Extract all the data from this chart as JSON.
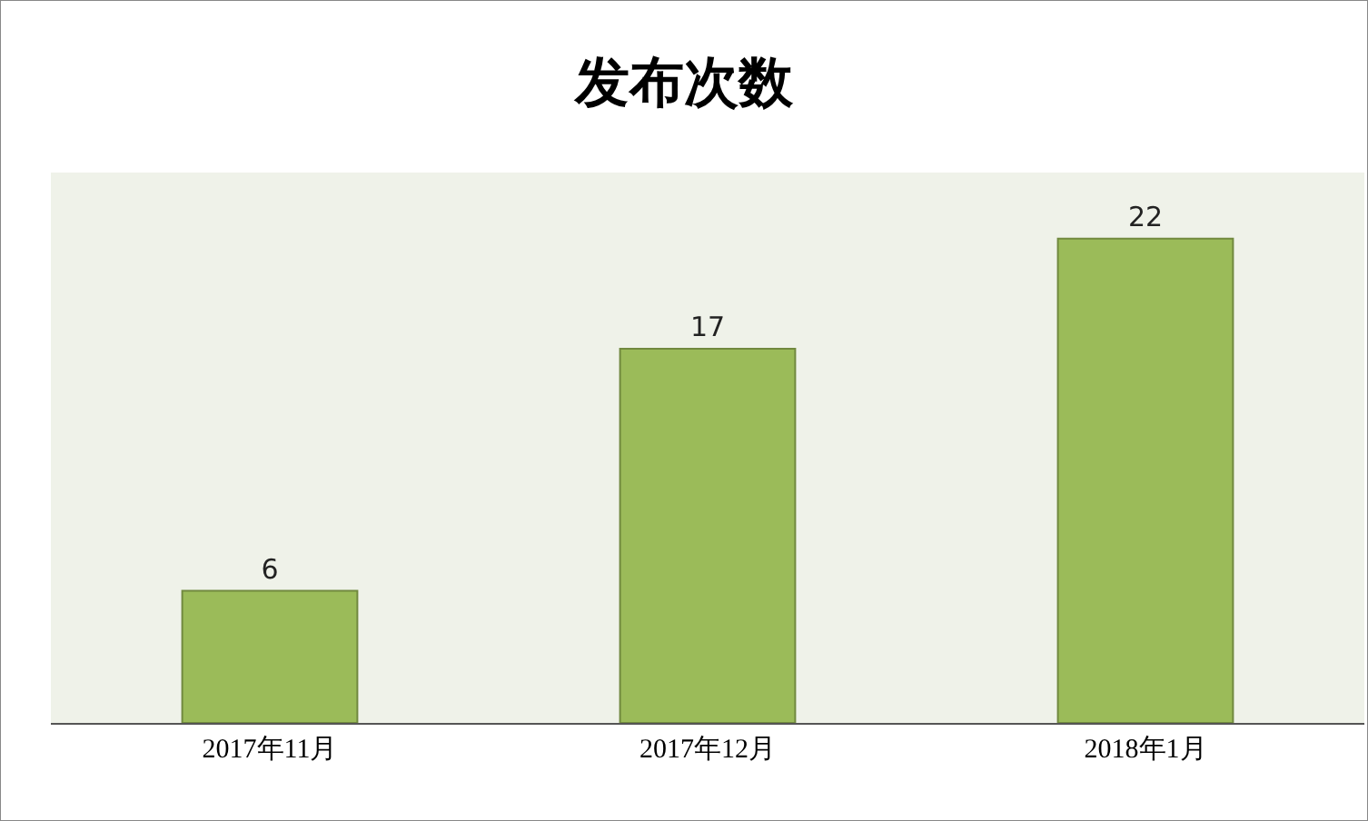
{
  "chart_data": {
    "type": "bar",
    "title": "发布次数",
    "categories": [
      "2017年11月",
      "2017年12月",
      "2018年1月"
    ],
    "values": [
      6,
      17,
      22
    ],
    "color": "#9bbb59",
    "ylim": [
      0,
      25
    ],
    "data_labels": true
  }
}
